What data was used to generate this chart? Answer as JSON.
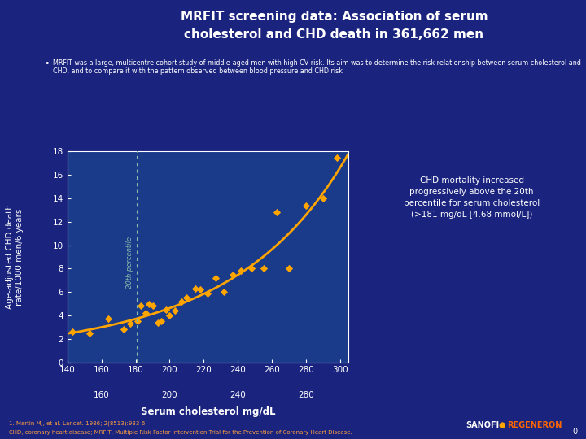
{
  "title_line1": "MRFIT screening data: Association of serum",
  "title_line2": "cholesterol and CHD death in 361,662 men",
  "bullet_text": "MRFIT was a large, multicentre cohort study of middle-aged men with high CV risk. Its aim was to determine the risk relationship between serum cholesterol and CHD, and to compare it with the pattern observed between blood pressure and CHD risk",
  "scatter_x": [
    143,
    153,
    164,
    173,
    177,
    181,
    183,
    186,
    188,
    190,
    193,
    195,
    198,
    200,
    203,
    207,
    210,
    215,
    218,
    222,
    227,
    232,
    237,
    242,
    248,
    255,
    263,
    270,
    280,
    290,
    298
  ],
  "scatter_y": [
    2.6,
    2.5,
    3.7,
    2.8,
    3.3,
    3.5,
    4.8,
    4.2,
    5.0,
    4.8,
    3.4,
    3.5,
    4.5,
    4.0,
    4.4,
    5.2,
    5.5,
    6.3,
    6.2,
    5.9,
    7.2,
    6.0,
    7.5,
    7.8,
    8.0,
    8.0,
    12.8,
    8.0,
    13.4,
    14.0,
    17.5
  ],
  "curve_color": "#FFA500",
  "scatter_color": "#FFA500",
  "vline_x": 181,
  "vline_color": "#88BBAA",
  "vline_label": "20th percentile",
  "background_color": "#1a237e",
  "plot_background": "#1a3a8a",
  "xlabel": "Serum cholesterol mg/dL",
  "ylabel": "Age-adjusted CHD death\nrate/1000 men/6 years",
  "xlim": [
    140,
    305
  ],
  "ylim": [
    0,
    18
  ],
  "yticks": [
    0,
    2,
    4,
    6,
    8,
    10,
    12,
    14,
    16,
    18
  ],
  "xticks_major": [
    140,
    160,
    180,
    200,
    220,
    240,
    260,
    280,
    300
  ],
  "xticks_minor": [
    160,
    200,
    240,
    280
  ],
  "annotation_text": "CHD mortality increased\nprogressively above the 20th\npercentile for serum cholesterol\n(>181 mg/dL [4.68 mmol/L])",
  "annotation_box_facecolor": "#8B6B00",
  "annotation_box_edgecolor": "#C8960C",
  "footer_text1": "1. Martin MJ, et al. Lancet. 1986; 2(8513):933-6.",
  "footer_text2": "CHD, coronary heart disease; MRFIT, Multiple Risk Factor Intervention Trial for the Prevention of Coronary Heart Disease."
}
